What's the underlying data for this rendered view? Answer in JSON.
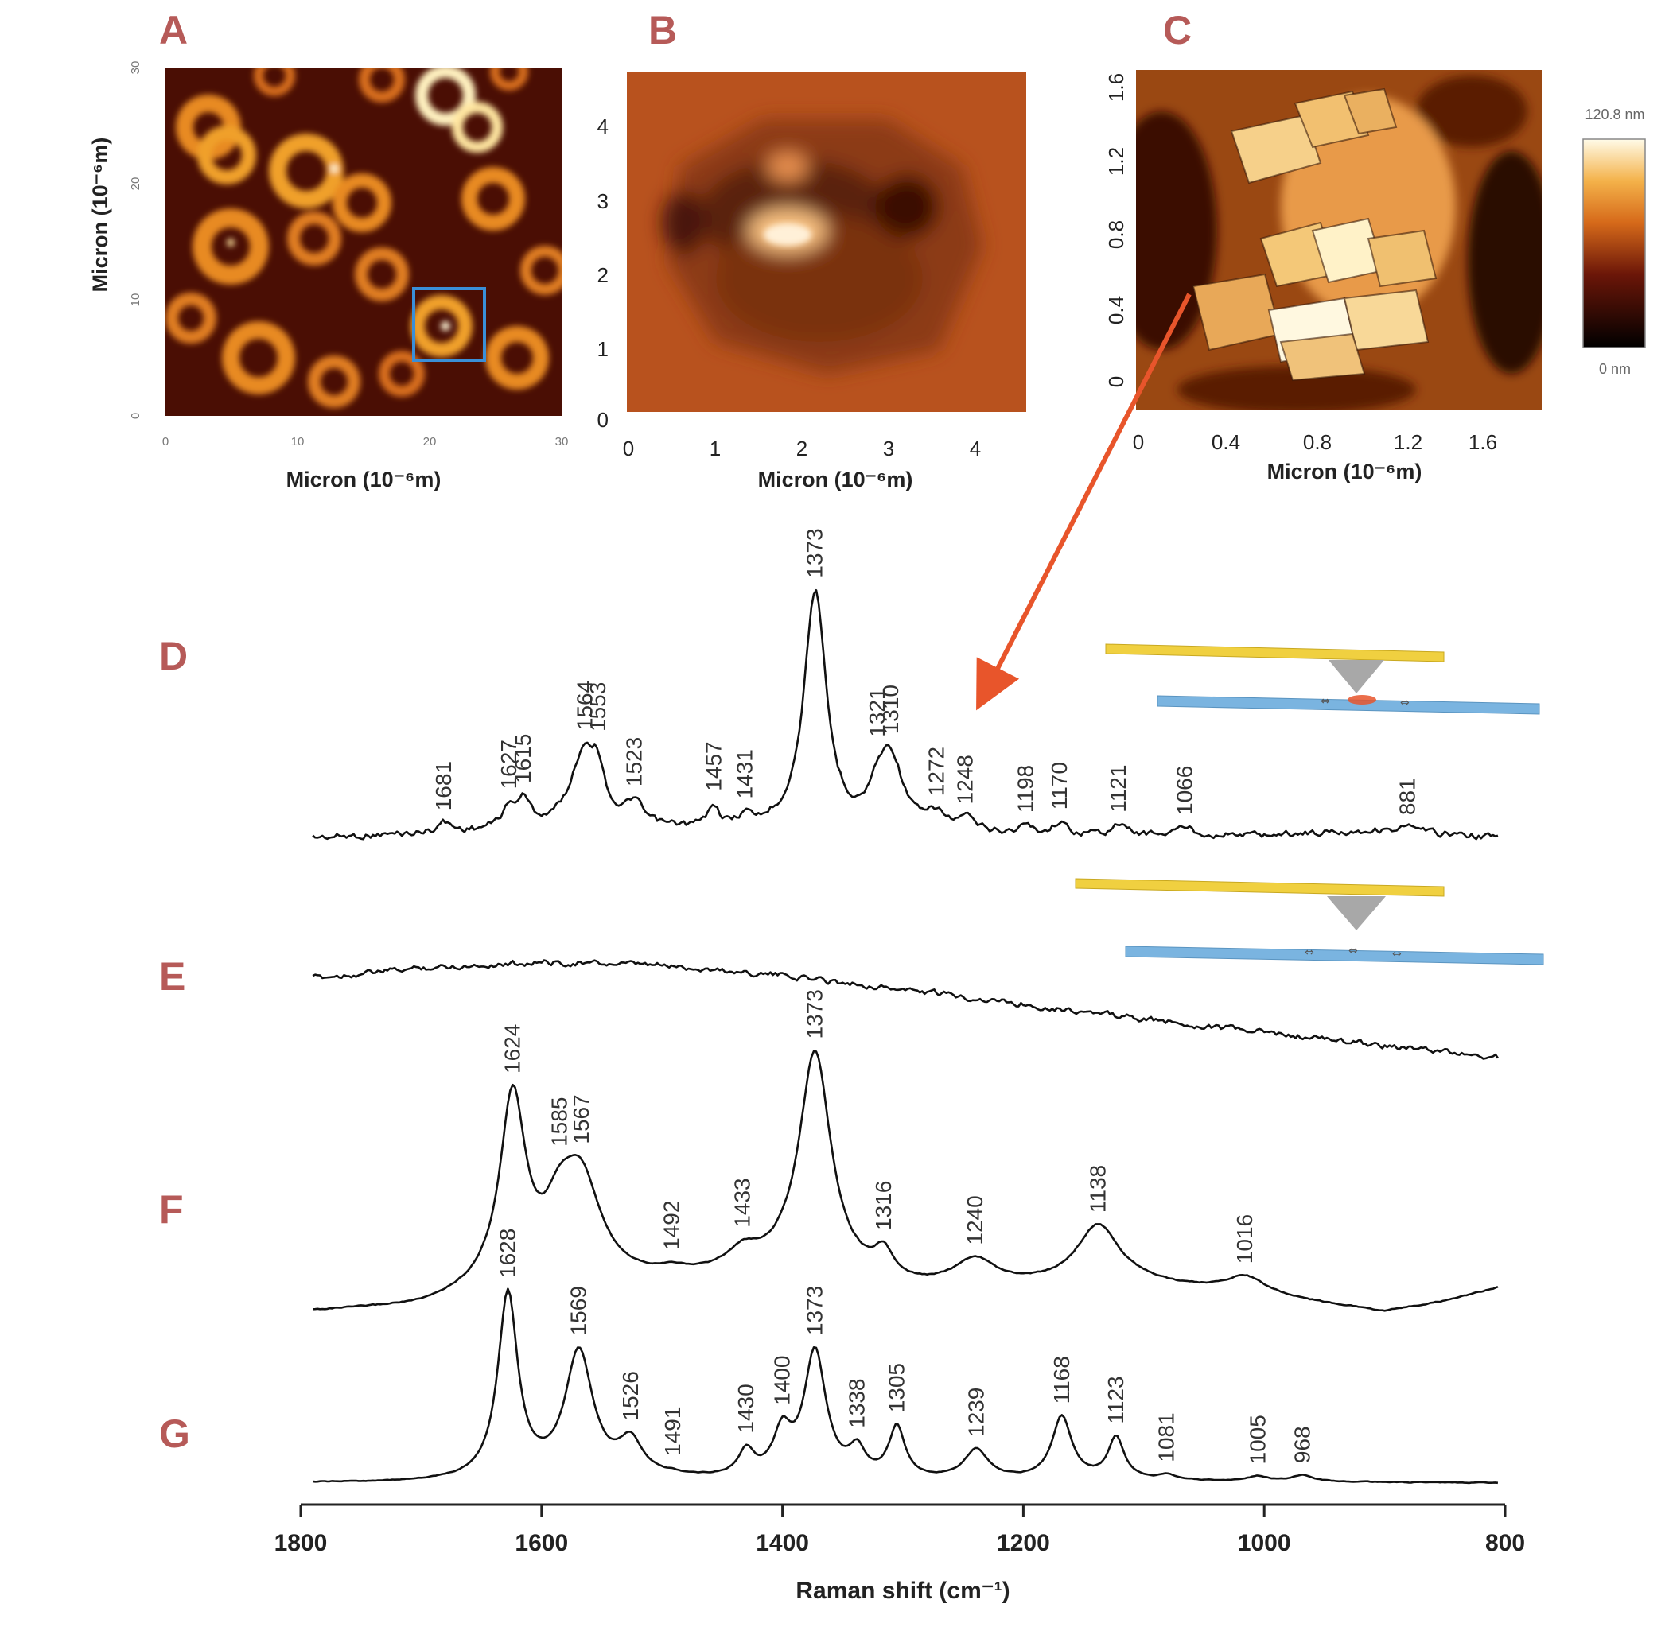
{
  "panels": {
    "A": {
      "letter": "A",
      "xlabel": "Micron (10⁻⁶m)",
      "ylabel": "Micron (10⁻⁶m)",
      "xticks": [
        "0",
        "10",
        "20",
        "30"
      ],
      "yticks": [
        "0",
        "10",
        "20",
        "30"
      ],
      "tick_values": [
        0,
        10,
        20,
        30
      ],
      "range": [
        0,
        30
      ],
      "highlight_box": {
        "x": [
          19,
          24.5
        ],
        "y": [
          4,
          9.5
        ],
        "color": "#3a8fd8"
      }
    },
    "B": {
      "letter": "B",
      "xlabel": "Micron (10⁻⁶m)",
      "xticks": [
        "0",
        "1",
        "2",
        "3",
        "4"
      ],
      "yticks": [
        "0",
        "1",
        "2",
        "3",
        "4"
      ],
      "tick_values": [
        0,
        1,
        2,
        3,
        4
      ],
      "range": [
        0,
        4.6
      ]
    },
    "C": {
      "letter": "C",
      "xlabel": "Micron (10⁻⁶m)",
      "xticks": [
        "0",
        "0.4",
        "0.8",
        "1.2",
        "1.6"
      ],
      "yticks": [
        "0",
        "0.4",
        "0.8",
        "1.2",
        "1.6"
      ],
      "tick_values": [
        0,
        0.4,
        0.8,
        1.2,
        1.6
      ],
      "range": [
        0,
        1.75
      ],
      "scale_max": "120.8 nm",
      "scale_min": "0 nm"
    }
  },
  "colors": {
    "letters": "#b65a58",
    "arrow": "#e8552b",
    "cantilever": "#f0d040",
    "substrate": "#7ab4e0",
    "tip": "#a0a0a0"
  },
  "chart_data": {
    "type": "line",
    "xlabel": "Raman shift (cm⁻¹)",
    "xlim": [
      1800,
      800
    ],
    "xticks": [
      1800,
      1600,
      1400,
      1200,
      1000,
      800
    ],
    "series": [
      {
        "name": "D",
        "baseline": [
          [
            1790,
            0.05
          ],
          [
            1600,
            0.12
          ],
          [
            1400,
            0.12
          ],
          [
            1200,
            0.08
          ],
          [
            1000,
            0.08
          ],
          [
            900,
            0.13
          ],
          [
            800,
            0.05
          ]
        ],
        "peaks": [
          {
            "x": 1681,
            "h": 0.1,
            "w": 7
          },
          {
            "x": 1627,
            "h": 0.18,
            "w": 8
          },
          {
            "x": 1615,
            "h": 0.25,
            "w": 7
          },
          {
            "x": 1564,
            "h": 0.8,
            "w": 14
          },
          {
            "x": 1553,
            "h": 0.3,
            "w": 6
          },
          {
            "x": 1523,
            "h": 0.22,
            "w": 8
          },
          {
            "x": 1457,
            "h": 0.22,
            "w": 5
          },
          {
            "x": 1431,
            "h": 0.1,
            "w": 6
          },
          {
            "x": 1373,
            "h": 2.4,
            "w": 11
          },
          {
            "x": 1321,
            "h": 0.25,
            "w": 8
          },
          {
            "x": 1310,
            "h": 0.7,
            "w": 12
          },
          {
            "x": 1272,
            "h": 0.15,
            "w": 8
          },
          {
            "x": 1248,
            "h": 0.12,
            "w": 8
          },
          {
            "x": 1198,
            "h": 0.08,
            "w": 6
          },
          {
            "x": 1170,
            "h": 0.12,
            "w": 6
          },
          {
            "x": 1121,
            "h": 0.1,
            "w": 6
          },
          {
            "x": 1066,
            "h": 0.08,
            "w": 7
          },
          {
            "x": 881,
            "h": 0.05,
            "w": 6
          }
        ],
        "labels": [
          "1681",
          "1627",
          "1615",
          "1564",
          "1553",
          "1523",
          "1457",
          "1431",
          "1373",
          "1321",
          "1310",
          "1272",
          "1248",
          "1198",
          "1170",
          "1121",
          "1066",
          "881"
        ]
      },
      {
        "name": "E",
        "baseline": [
          [
            1790,
            0.0
          ],
          [
            1700,
            0.18
          ],
          [
            1600,
            0.28
          ],
          [
            1500,
            0.22
          ],
          [
            1400,
            0.05
          ],
          [
            1300,
            -0.2
          ],
          [
            1200,
            -0.45
          ],
          [
            1100,
            -0.72
          ],
          [
            1000,
            -0.95
          ],
          [
            900,
            -1.18
          ],
          [
            800,
            -1.4
          ]
        ],
        "peaks": [],
        "labels": []
      },
      {
        "name": "F",
        "baseline": [
          [
            1790,
            0.0
          ],
          [
            1700,
            0.05
          ],
          [
            1650,
            0.2
          ],
          [
            1500,
            0.35
          ],
          [
            1400,
            0.45
          ],
          [
            1300,
            0.25
          ],
          [
            1200,
            0.28
          ],
          [
            1100,
            0.3
          ],
          [
            1000,
            0.18
          ],
          [
            900,
            0.0
          ],
          [
            850,
            0.12
          ],
          [
            800,
            0.3
          ]
        ],
        "peaks": [
          {
            "x": 1624,
            "h": 2.2,
            "w": 13
          },
          {
            "x": 1585,
            "h": 0.6,
            "w": 16
          },
          {
            "x": 1567,
            "h": 1.1,
            "w": 20
          },
          {
            "x": 1492,
            "h": 0.06,
            "w": 10
          },
          {
            "x": 1433,
            "h": 0.2,
            "w": 15
          },
          {
            "x": 1373,
            "h": 2.6,
            "w": 16
          },
          {
            "x": 1316,
            "h": 0.3,
            "w": 10
          },
          {
            "x": 1240,
            "h": 0.3,
            "w": 20
          },
          {
            "x": 1138,
            "h": 0.7,
            "w": 22
          },
          {
            "x": 1016,
            "h": 0.2,
            "w": 20
          }
        ],
        "labels": [
          "1624",
          "1585",
          "1567",
          "1492",
          "1433",
          "1373",
          "1316",
          "1240",
          "1138",
          "1016"
        ]
      },
      {
        "name": "G",
        "baseline": [
          [
            1790,
            0.0
          ],
          [
            1700,
            0.0
          ],
          [
            1500,
            0.03
          ],
          [
            1300,
            0.02
          ],
          [
            1100,
            0.02
          ],
          [
            800,
            0.0
          ]
        ],
        "peaks": [
          {
            "x": 1628,
            "h": 2.2,
            "w": 10
          },
          {
            "x": 1569,
            "h": 1.5,
            "w": 14
          },
          {
            "x": 1526,
            "h": 0.4,
            "w": 12
          },
          {
            "x": 1491,
            "h": 0.02,
            "w": 6
          },
          {
            "x": 1430,
            "h": 0.3,
            "w": 8
          },
          {
            "x": 1400,
            "h": 0.5,
            "w": 9
          },
          {
            "x": 1373,
            "h": 1.5,
            "w": 11
          },
          {
            "x": 1338,
            "h": 0.3,
            "w": 8
          },
          {
            "x": 1305,
            "h": 0.6,
            "w": 8
          },
          {
            "x": 1239,
            "h": 0.35,
            "w": 12
          },
          {
            "x": 1168,
            "h": 0.75,
            "w": 10
          },
          {
            "x": 1123,
            "h": 0.5,
            "w": 8
          },
          {
            "x": 1081,
            "h": 0.06,
            "w": 8
          },
          {
            "x": 1005,
            "h": 0.06,
            "w": 10
          },
          {
            "x": 968,
            "h": 0.08,
            "w": 10
          }
        ],
        "labels": [
          "1628",
          "1569",
          "1526",
          "1491",
          "1430",
          "1400",
          "1373",
          "1338",
          "1305",
          "1239",
          "1168",
          "1123",
          "1081",
          "1005",
          "968"
        ]
      }
    ]
  }
}
